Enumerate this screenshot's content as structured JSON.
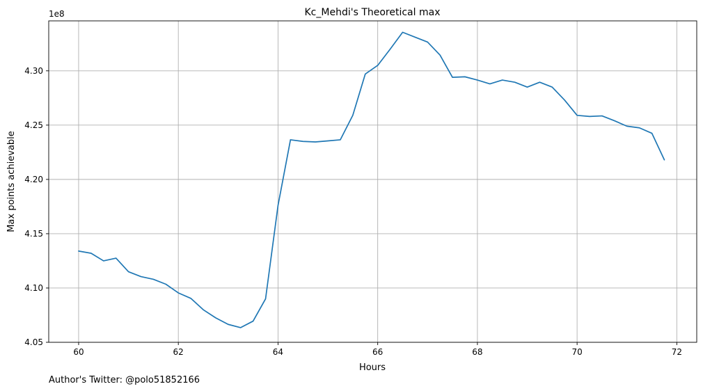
{
  "chart_data": {
    "type": "line",
    "title": "Kc_Mehdi's Theoretical max",
    "xlabel": "Hours",
    "ylabel": "Max points achievable",
    "y_offset_label": "1e8",
    "footer": "Author's Twitter: @polo51852166",
    "xlim": [
      59.4,
      72.4
    ],
    "ylim": [
      405000000,
      434600000
    ],
    "x_ticks": [
      60,
      62,
      64,
      66,
      68,
      70,
      72
    ],
    "x_tick_labels": [
      "60",
      "62",
      "64",
      "66",
      "68",
      "70",
      "72"
    ],
    "y_ticks": [
      405000000,
      410000000,
      415000000,
      420000000,
      425000000,
      430000000
    ],
    "y_tick_labels": [
      "4.05",
      "4.10",
      "4.15",
      "4.20",
      "4.25",
      "4.30"
    ],
    "grid": true,
    "line_color": "#1f77b4",
    "series": [
      {
        "x": [
          60.0,
          60.25,
          60.5,
          60.75,
          61.0,
          61.25,
          61.5,
          61.75,
          62.0,
          62.25,
          62.5,
          62.75,
          63.0,
          63.25,
          63.5,
          63.75,
          64.0,
          64.25,
          64.5,
          64.75,
          65.0,
          65.25,
          65.5,
          65.75,
          66.0,
          66.25,
          66.5,
          66.75,
          67.0,
          67.25,
          67.5,
          67.75,
          68.0,
          68.25,
          68.5,
          68.75,
          69.0,
          69.25,
          69.5,
          69.75,
          70.0,
          70.25,
          70.5,
          70.75,
          71.0,
          71.25,
          71.5,
          71.75
        ],
        "y": [
          413400000,
          413200000,
          412500000,
          412750000,
          411500000,
          411050000,
          410800000,
          410350000,
          409550000,
          409050000,
          408000000,
          407250000,
          406650000,
          406350000,
          406950000,
          409000000,
          417600000,
          423650000,
          423500000,
          423450000,
          423550000,
          423650000,
          425900000,
          429700000,
          430500000,
          432000000,
          433550000,
          433100000,
          432650000,
          431450000,
          429400000,
          429450000,
          429150000,
          428800000,
          429150000,
          428950000,
          428500000,
          428950000,
          428500000,
          427300000,
          425900000,
          425800000,
          425850000,
          425400000,
          424900000,
          424750000,
          424250000,
          421800000
        ]
      }
    ]
  }
}
